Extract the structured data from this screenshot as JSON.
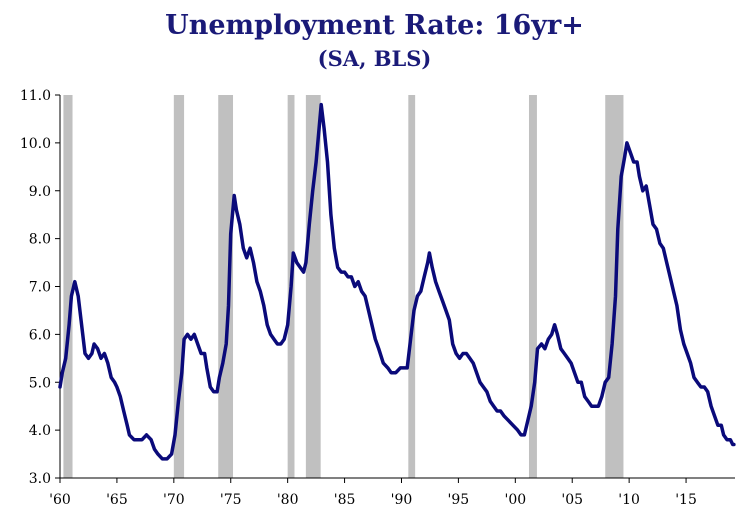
{
  "chart_data": {
    "type": "line",
    "title": "Unemployment Rate: 16yr+",
    "subtitle": "(SA, BLS)",
    "xlabel": "",
    "ylabel": "",
    "xlim": [
      1960,
      2019.3
    ],
    "ylim": [
      3.0,
      11.0
    ],
    "y_ticks": [
      {
        "value": 11.0,
        "label": "11.0"
      },
      {
        "value": 10.0,
        "label": "10.0"
      },
      {
        "value": 9.0,
        "label": "9.0"
      },
      {
        "value": 8.0,
        "label": "8.0"
      },
      {
        "value": 7.0,
        "label": "7.0"
      },
      {
        "value": 6.0,
        "label": "6.0"
      },
      {
        "value": 5.0,
        "label": "5.0"
      },
      {
        "value": 4.0,
        "label": "4.0"
      },
      {
        "value": 3.0,
        "label": "3.0"
      }
    ],
    "x_ticks": [
      {
        "value": 1960,
        "label": "'60"
      },
      {
        "value": 1965,
        "label": "'65"
      },
      {
        "value": 1970,
        "label": "'70"
      },
      {
        "value": 1975,
        "label": "'75"
      },
      {
        "value": 1980,
        "label": "'80"
      },
      {
        "value": 1985,
        "label": "'85"
      },
      {
        "value": 1990,
        "label": "'90"
      },
      {
        "value": 1995,
        "label": "'95"
      },
      {
        "value": 2000,
        "label": "'00"
      },
      {
        "value": 2005,
        "label": "'05"
      },
      {
        "value": 2010,
        "label": "'10"
      },
      {
        "value": 2015,
        "label": "'15"
      }
    ],
    "grid": false,
    "legend": "none",
    "colors": {
      "line": "#0a0a7a",
      "recession": "#c0c0c0",
      "title": "#1a1a78"
    },
    "recessions": [
      {
        "start": 1960.3,
        "end": 1961.1
      },
      {
        "start": 1970.0,
        "end": 1970.9
      },
      {
        "start": 1973.9,
        "end": 1975.2
      },
      {
        "start": 1980.0,
        "end": 1980.6
      },
      {
        "start": 1981.6,
        "end": 1982.9
      },
      {
        "start": 1990.6,
        "end": 1991.2
      },
      {
        "start": 2001.2,
        "end": 2001.9
      },
      {
        "start": 2007.9,
        "end": 2009.5
      }
    ],
    "series": [
      {
        "values": [
          [
            1960.0,
            4.9
          ],
          [
            1960.2,
            5.2
          ],
          [
            1960.5,
            5.5
          ],
          [
            1960.8,
            6.2
          ],
          [
            1961.0,
            6.8
          ],
          [
            1961.3,
            7.1
          ],
          [
            1961.6,
            6.8
          ],
          [
            1961.9,
            6.2
          ],
          [
            1962.2,
            5.6
          ],
          [
            1962.5,
            5.5
          ],
          [
            1962.8,
            5.6
          ],
          [
            1963.0,
            5.8
          ],
          [
            1963.3,
            5.7
          ],
          [
            1963.6,
            5.5
          ],
          [
            1963.9,
            5.6
          ],
          [
            1964.2,
            5.4
          ],
          [
            1964.5,
            5.1
          ],
          [
            1964.8,
            5.0
          ],
          [
            1965.0,
            4.9
          ],
          [
            1965.3,
            4.7
          ],
          [
            1965.6,
            4.4
          ],
          [
            1965.9,
            4.1
          ],
          [
            1966.1,
            3.9
          ],
          [
            1966.5,
            3.8
          ],
          [
            1966.9,
            3.8
          ],
          [
            1967.2,
            3.8
          ],
          [
            1967.6,
            3.9
          ],
          [
            1968.0,
            3.8
          ],
          [
            1968.3,
            3.6
          ],
          [
            1968.6,
            3.5
          ],
          [
            1969.0,
            3.4
          ],
          [
            1969.4,
            3.4
          ],
          [
            1969.8,
            3.5
          ],
          [
            1970.1,
            3.9
          ],
          [
            1970.4,
            4.6
          ],
          [
            1970.7,
            5.2
          ],
          [
            1970.9,
            5.9
          ],
          [
            1971.2,
            6.0
          ],
          [
            1971.5,
            5.9
          ],
          [
            1971.8,
            6.0
          ],
          [
            1972.1,
            5.8
          ],
          [
            1972.4,
            5.6
          ],
          [
            1972.7,
            5.6
          ],
          [
            1972.9,
            5.3
          ],
          [
            1973.2,
            4.9
          ],
          [
            1973.5,
            4.8
          ],
          [
            1973.8,
            4.8
          ],
          [
            1974.0,
            5.1
          ],
          [
            1974.3,
            5.4
          ],
          [
            1974.6,
            5.8
          ],
          [
            1974.8,
            6.6
          ],
          [
            1975.0,
            8.1
          ],
          [
            1975.3,
            8.9
          ],
          [
            1975.5,
            8.6
          ],
          [
            1975.8,
            8.3
          ],
          [
            1976.1,
            7.8
          ],
          [
            1976.4,
            7.6
          ],
          [
            1976.7,
            7.8
          ],
          [
            1977.0,
            7.5
          ],
          [
            1977.3,
            7.1
          ],
          [
            1977.6,
            6.9
          ],
          [
            1977.9,
            6.6
          ],
          [
            1978.2,
            6.2
          ],
          [
            1978.5,
            6.0
          ],
          [
            1978.8,
            5.9
          ],
          [
            1979.1,
            5.8
          ],
          [
            1979.4,
            5.8
          ],
          [
            1979.7,
            5.9
          ],
          [
            1980.0,
            6.2
          ],
          [
            1980.3,
            7.0
          ],
          [
            1980.5,
            7.7
          ],
          [
            1980.8,
            7.5
          ],
          [
            1981.1,
            7.4
          ],
          [
            1981.4,
            7.3
          ],
          [
            1981.6,
            7.5
          ],
          [
            1981.9,
            8.3
          ],
          [
            1982.2,
            9.0
          ],
          [
            1982.5,
            9.6
          ],
          [
            1982.8,
            10.4
          ],
          [
            1982.95,
            10.8
          ],
          [
            1983.2,
            10.3
          ],
          [
            1983.5,
            9.6
          ],
          [
            1983.8,
            8.5
          ],
          [
            1984.1,
            7.8
          ],
          [
            1984.4,
            7.4
          ],
          [
            1984.7,
            7.3
          ],
          [
            1985.0,
            7.3
          ],
          [
            1985.3,
            7.2
          ],
          [
            1985.6,
            7.2
          ],
          [
            1985.9,
            7.0
          ],
          [
            1986.2,
            7.1
          ],
          [
            1986.5,
            6.9
          ],
          [
            1986.8,
            6.8
          ],
          [
            1987.1,
            6.5
          ],
          [
            1987.4,
            6.2
          ],
          [
            1987.7,
            5.9
          ],
          [
            1988.0,
            5.7
          ],
          [
            1988.4,
            5.4
          ],
          [
            1988.8,
            5.3
          ],
          [
            1989.1,
            5.2
          ],
          [
            1989.5,
            5.2
          ],
          [
            1989.9,
            5.3
          ],
          [
            1990.2,
            5.3
          ],
          [
            1990.5,
            5.3
          ],
          [
            1990.8,
            5.9
          ],
          [
            1991.1,
            6.5
          ],
          [
            1991.4,
            6.8
          ],
          [
            1991.7,
            6.9
          ],
          [
            1992.0,
            7.2
          ],
          [
            1992.3,
            7.5
          ],
          [
            1992.45,
            7.7
          ],
          [
            1992.7,
            7.4
          ],
          [
            1993.0,
            7.1
          ],
          [
            1993.3,
            6.9
          ],
          [
            1993.6,
            6.7
          ],
          [
            1993.9,
            6.5
          ],
          [
            1994.2,
            6.3
          ],
          [
            1994.5,
            5.8
          ],
          [
            1994.8,
            5.6
          ],
          [
            1995.1,
            5.5
          ],
          [
            1995.4,
            5.6
          ],
          [
            1995.7,
            5.6
          ],
          [
            1996.0,
            5.5
          ],
          [
            1996.3,
            5.4
          ],
          [
            1996.6,
            5.2
          ],
          [
            1996.9,
            5.0
          ],
          [
            1997.2,
            4.9
          ],
          [
            1997.5,
            4.8
          ],
          [
            1997.8,
            4.6
          ],
          [
            1998.1,
            4.5
          ],
          [
            1998.4,
            4.4
          ],
          [
            1998.7,
            4.4
          ],
          [
            1999.0,
            4.3
          ],
          [
            1999.4,
            4.2
          ],
          [
            1999.8,
            4.1
          ],
          [
            2000.2,
            4.0
          ],
          [
            2000.5,
            3.9
          ],
          [
            2000.8,
            3.9
          ],
          [
            2001.1,
            4.2
          ],
          [
            2001.4,
            4.5
          ],
          [
            2001.7,
            5.0
          ],
          [
            2001.95,
            5.7
          ],
          [
            2002.3,
            5.8
          ],
          [
            2002.6,
            5.7
          ],
          [
            2002.9,
            5.9
          ],
          [
            2003.2,
            6.0
          ],
          [
            2003.45,
            6.2
          ],
          [
            2003.7,
            6.0
          ],
          [
            2004.0,
            5.7
          ],
          [
            2004.3,
            5.6
          ],
          [
            2004.6,
            5.5
          ],
          [
            2004.9,
            5.4
          ],
          [
            2005.2,
            5.2
          ],
          [
            2005.5,
            5.0
          ],
          [
            2005.8,
            5.0
          ],
          [
            2006.1,
            4.7
          ],
          [
            2006.4,
            4.6
          ],
          [
            2006.7,
            4.5
          ],
          [
            2007.0,
            4.5
          ],
          [
            2007.3,
            4.5
          ],
          [
            2007.6,
            4.7
          ],
          [
            2007.9,
            5.0
          ],
          [
            2008.2,
            5.1
          ],
          [
            2008.5,
            5.8
          ],
          [
            2008.8,
            6.8
          ],
          [
            2009.0,
            8.2
          ],
          [
            2009.3,
            9.3
          ],
          [
            2009.6,
            9.7
          ],
          [
            2009.8,
            10.0
          ],
          [
            2010.1,
            9.8
          ],
          [
            2010.4,
            9.6
          ],
          [
            2010.7,
            9.6
          ],
          [
            2010.9,
            9.3
          ],
          [
            2011.2,
            9.0
          ],
          [
            2011.5,
            9.1
          ],
          [
            2011.8,
            8.7
          ],
          [
            2012.1,
            8.3
          ],
          [
            2012.4,
            8.2
          ],
          [
            2012.7,
            7.9
          ],
          [
            2013.0,
            7.8
          ],
          [
            2013.3,
            7.5
          ],
          [
            2013.6,
            7.2
          ],
          [
            2013.9,
            6.9
          ],
          [
            2014.2,
            6.6
          ],
          [
            2014.5,
            6.1
          ],
          [
            2014.8,
            5.8
          ],
          [
            2015.1,
            5.6
          ],
          [
            2015.4,
            5.4
          ],
          [
            2015.7,
            5.1
          ],
          [
            2016.0,
            5.0
          ],
          [
            2016.3,
            4.9
          ],
          [
            2016.6,
            4.9
          ],
          [
            2016.9,
            4.8
          ],
          [
            2017.2,
            4.5
          ],
          [
            2017.5,
            4.3
          ],
          [
            2017.8,
            4.1
          ],
          [
            2018.1,
            4.1
          ],
          [
            2018.3,
            3.9
          ],
          [
            2018.6,
            3.8
          ],
          [
            2018.9,
            3.8
          ],
          [
            2019.1,
            3.7
          ],
          [
            2019.2,
            3.7
          ]
        ]
      }
    ]
  }
}
